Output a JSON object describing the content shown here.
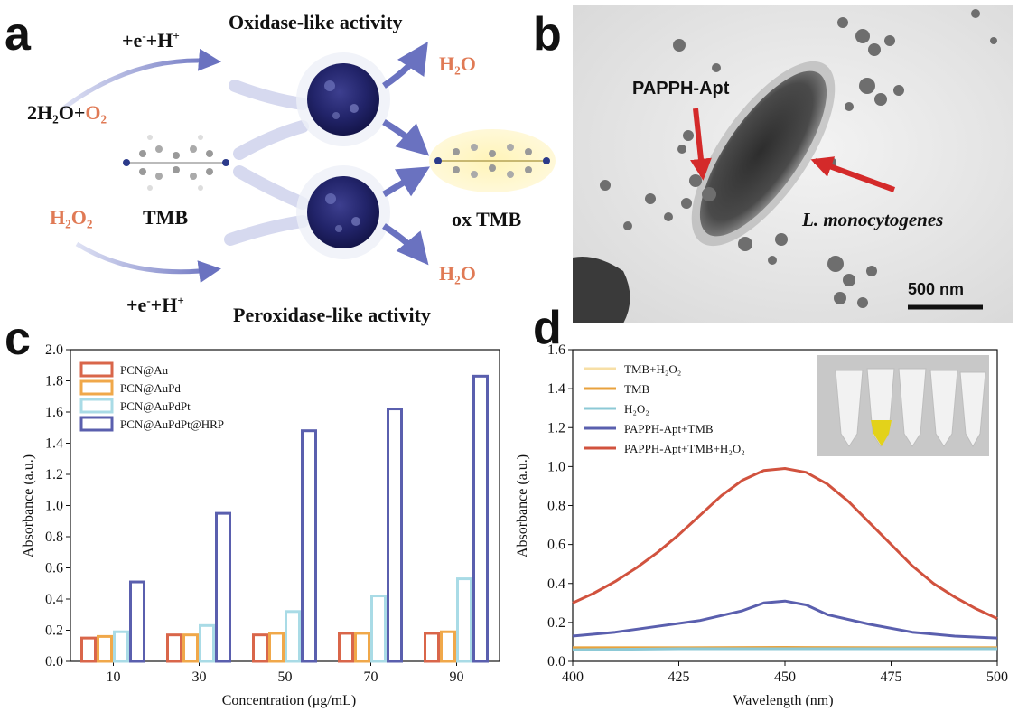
{
  "panels": {
    "a": {
      "label": "a",
      "oxidase_title": "Oxidase-like activity",
      "peroxidase_title": "Peroxidase-like activity",
      "electron_top": "+e",
      "electron_top_sup": "-",
      "electron_top_tail": "+H",
      "electron_top_tail_sup": "+",
      "electron_bottom": "+e",
      "electron_bottom_sup": "-",
      "electron_bottom_tail": "+H",
      "electron_bottom_tail_sup": "+",
      "reactant_top": "2H₂O+",
      "reactant_top_o2": "O₂",
      "reactant_bottom": "H₂O₂",
      "tmb": "TMB",
      "product_water_top": "H₂O",
      "product_water_bottom": "H₂O",
      "ox_tmb": "ox TMB",
      "colors": {
        "accent_orange": "#e07a55",
        "arrow_blue": "#6a72c0"
      }
    },
    "b": {
      "label": "b",
      "pappha_label": "PAPPH-Apt",
      "bacteria_label": "L. monocytogenes",
      "scale_bar": "500 nm"
    },
    "c": {
      "label": "c"
    },
    "d": {
      "label": "d"
    }
  },
  "chart_data": [
    {
      "type": "bar",
      "panel": "c",
      "categories": [
        "10",
        "30",
        "50",
        "70",
        "90"
      ],
      "xlabel": "Concentration (μg/mL)",
      "ylabel": "Absorbance (a.u.)",
      "ylim": [
        0,
        2.0
      ],
      "yticks": [
        "0.0",
        "0.2",
        "0.4",
        "0.6",
        "0.8",
        "1.0",
        "1.2",
        "1.4",
        "1.6",
        "1.8",
        "2.0"
      ],
      "legend_position": "top-left",
      "series": [
        {
          "name": "PCN@Au",
          "color": "#d9664a",
          "values": [
            0.15,
            0.17,
            0.17,
            0.18,
            0.18
          ]
        },
        {
          "name": "PCN@AuPd",
          "color": "#f0a84a",
          "values": [
            0.16,
            0.17,
            0.18,
            0.18,
            0.19
          ]
        },
        {
          "name": "PCN@AuPdPt",
          "color": "#a9dbe6",
          "values": [
            0.19,
            0.23,
            0.32,
            0.42,
            0.53
          ]
        },
        {
          "name": "PCN@AuPdPt@HRP",
          "color": "#5a5fae",
          "values": [
            0.51,
            0.95,
            1.48,
            1.62,
            1.83
          ]
        }
      ]
    },
    {
      "type": "line",
      "panel": "d",
      "xlabel": "Wavelength (nm)",
      "ylabel": "Absorbance (a.u.)",
      "xlim": [
        400,
        500
      ],
      "ylim": [
        0,
        1.6
      ],
      "xticks": [
        "400",
        "425",
        "450",
        "475",
        "500"
      ],
      "yticks": [
        "0.0",
        "0.2",
        "0.4",
        "0.6",
        "0.8",
        "1.0",
        "1.2",
        "1.4",
        "1.6"
      ],
      "legend_position": "top-left",
      "series": [
        {
          "name": "TMB+H₂O₂",
          "name_html": "TMB+H<sub>2</sub>O<sub>2</sub>",
          "color": "#f7dfa6",
          "x": [
            400,
            425,
            450,
            475,
            500
          ],
          "y": [
            0.07,
            0.07,
            0.07,
            0.07,
            0.07
          ]
        },
        {
          "name": "TMB",
          "color": "#e8a23d",
          "x": [
            400,
            425,
            450,
            475,
            500
          ],
          "y": [
            0.07,
            0.07,
            0.072,
            0.07,
            0.07
          ]
        },
        {
          "name": "H₂O₂",
          "color": "#8cc9d6",
          "x": [
            400,
            425,
            450,
            475,
            500
          ],
          "y": [
            0.06,
            0.065,
            0.065,
            0.065,
            0.065
          ]
        },
        {
          "name": "PAPPH-Apt+TMB",
          "color": "#5a5fae",
          "x": [
            400,
            410,
            420,
            430,
            440,
            445,
            450,
            455,
            460,
            470,
            480,
            490,
            500
          ],
          "y": [
            0.13,
            0.15,
            0.18,
            0.21,
            0.26,
            0.3,
            0.31,
            0.29,
            0.24,
            0.19,
            0.15,
            0.13,
            0.12
          ]
        },
        {
          "name": "PAPPH-Apt+TMB+H₂O₂",
          "color": "#d1523e",
          "x": [
            400,
            405,
            410,
            415,
            420,
            425,
            430,
            435,
            440,
            445,
            450,
            455,
            460,
            465,
            470,
            475,
            480,
            485,
            490,
            495,
            500
          ],
          "y": [
            0.3,
            0.35,
            0.41,
            0.48,
            0.56,
            0.65,
            0.75,
            0.85,
            0.93,
            0.98,
            0.99,
            0.97,
            0.91,
            0.82,
            0.71,
            0.6,
            0.49,
            0.4,
            0.33,
            0.27,
            0.22
          ]
        }
      ]
    }
  ]
}
